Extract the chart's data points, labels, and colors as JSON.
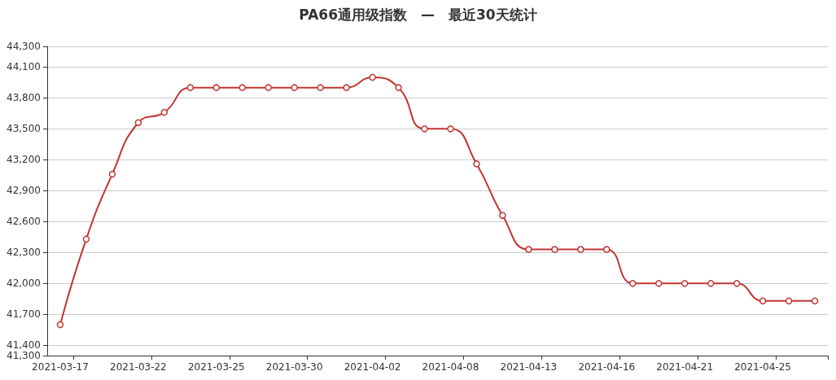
{
  "chart_data": {
    "type": "line",
    "title": "PA66通用级指数　—　最近30天统计",
    "categories": [
      "2021-03-17",
      null,
      null,
      "2021-03-22",
      null,
      null,
      "2021-03-25",
      null,
      null,
      "2021-03-30",
      null,
      null,
      "2021-04-02",
      null,
      null,
      "2021-04-08",
      null,
      null,
      "2021-04-13",
      null,
      null,
      "2021-04-16",
      null,
      null,
      "2021-04-21",
      null,
      null,
      "2021-04-25",
      null,
      null
    ],
    "series": [
      {
        "color": "#c23531",
        "values": [
          41600,
          42430,
          43060,
          43560,
          43660,
          43900,
          43900,
          43900,
          43900,
          43900,
          43900,
          43900,
          44000,
          43900,
          43500,
          43500,
          43160,
          42660,
          42330,
          42330,
          42330,
          42330,
          42000,
          42000,
          42000,
          42000,
          42000,
          41830,
          41830,
          41830
        ]
      }
    ],
    "ylim": [
      41300,
      44300
    ],
    "yticks": [
      {
        "value": 41300,
        "label": "41,300"
      },
      {
        "value": 41400,
        "label": "41,400"
      },
      {
        "value": 41700,
        "label": "41,700"
      },
      {
        "value": 42000,
        "label": "42,000"
      },
      {
        "value": 42300,
        "label": "42,300"
      },
      {
        "value": 42600,
        "label": "42,600"
      },
      {
        "value": 42900,
        "label": "42,900"
      },
      {
        "value": 43200,
        "label": "43,200"
      },
      {
        "value": 43500,
        "label": "43,500"
      },
      {
        "value": 43800,
        "label": "43,800"
      },
      {
        "value": 44100,
        "label": "44,100"
      },
      {
        "value": 44300,
        "label": "44,300"
      }
    ],
    "grid": "y",
    "marker": "circle",
    "line_style": "solid"
  }
}
